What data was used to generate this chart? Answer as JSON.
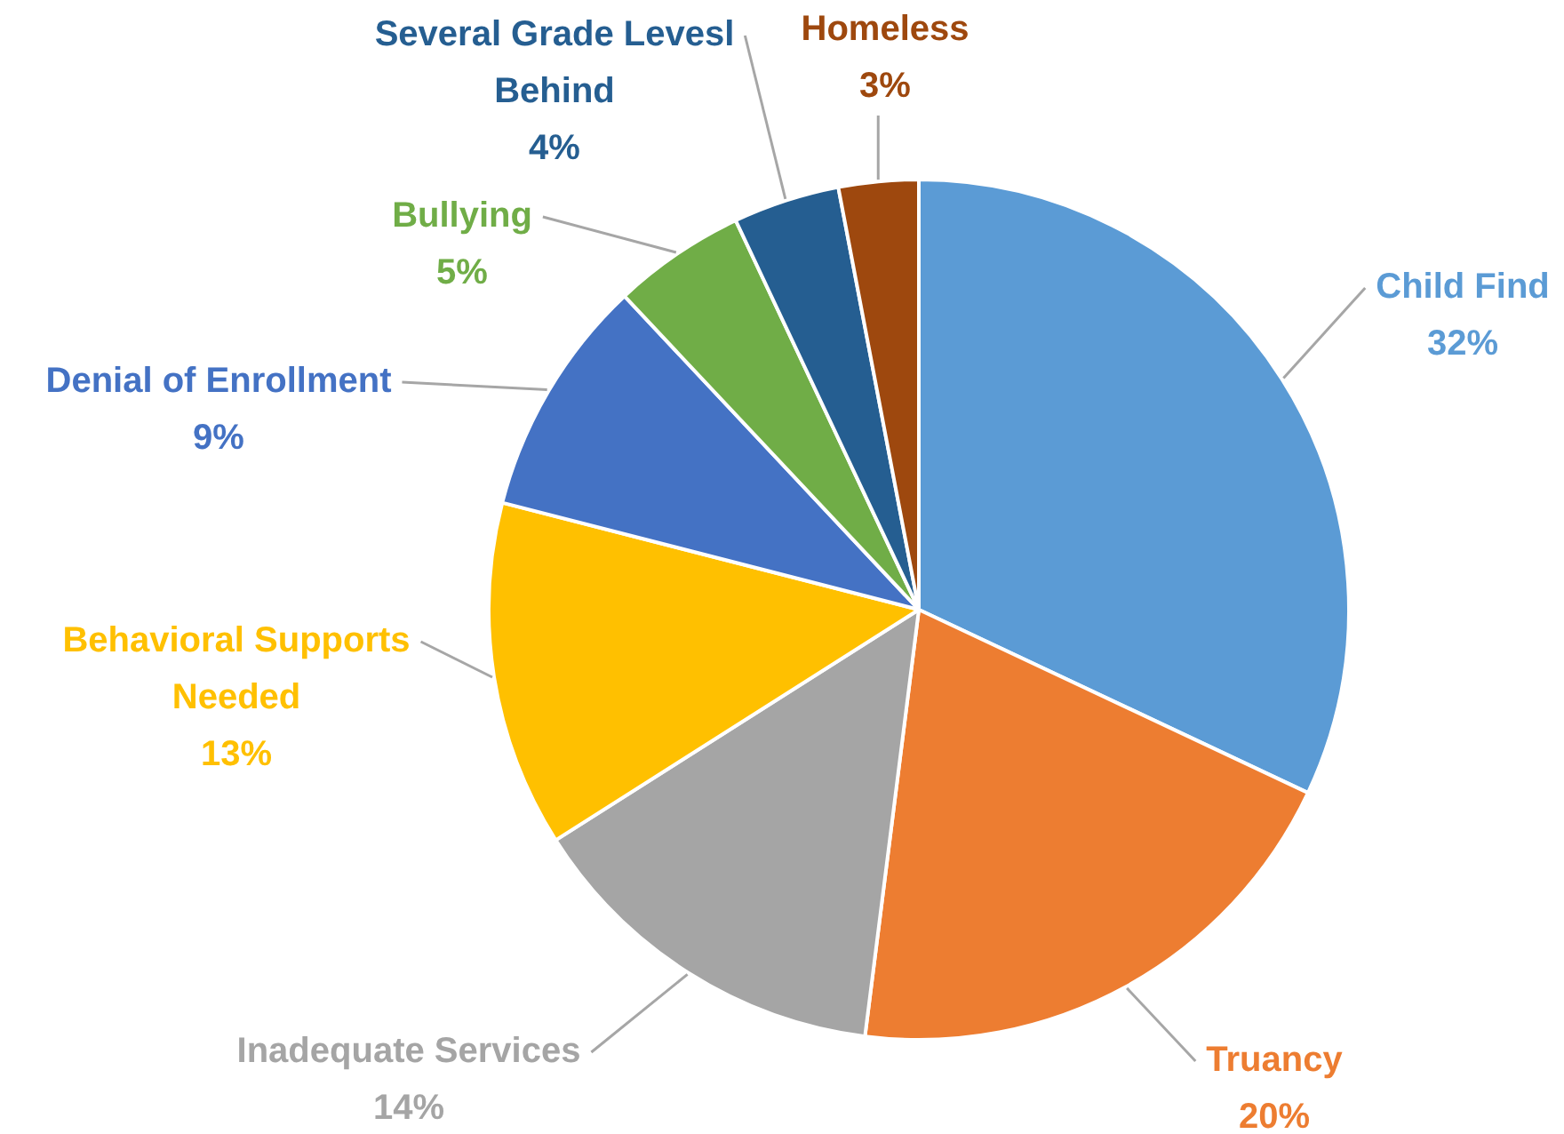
{
  "chart_data": {
    "type": "pie",
    "categories": [
      "Child Find",
      "Truancy",
      "Inadequate Services",
      "Behavioral Supports Needed",
      "Denial of Enrollment",
      "Bullying",
      "Several Grade Levesl Behind",
      "Homeless"
    ],
    "values": [
      32,
      20,
      14,
      13,
      9,
      5,
      4,
      3
    ],
    "colors": [
      "#5b9bd5",
      "#ed7d31",
      "#a5a5a5",
      "#ffc000",
      "#4472c4",
      "#70ad47",
      "#255e91",
      "#9e480e"
    ],
    "value_labels": [
      "32%",
      "20%",
      "14%",
      "13%",
      "9%",
      "5%",
      "4%",
      "3%"
    ]
  }
}
